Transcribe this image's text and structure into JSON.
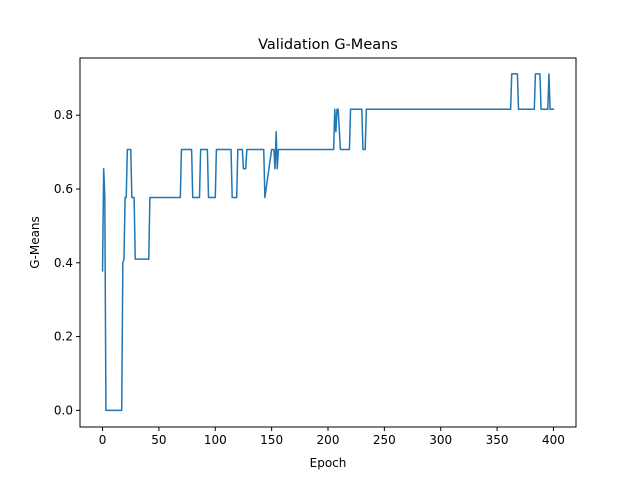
{
  "chart_data": {
    "type": "line",
    "title": "Validation G-Means",
    "xlabel": "Epoch",
    "ylabel": "G-Means",
    "xlim": [
      -20,
      420
    ],
    "ylim": [
      -0.045,
      0.955
    ],
    "xticks": [
      0,
      50,
      100,
      150,
      200,
      250,
      300,
      350,
      400
    ],
    "yticks": [
      0.0,
      0.2,
      0.4,
      0.6,
      0.8
    ],
    "ytick_labels": [
      "0.0",
      "0.2",
      "0.4",
      "0.6",
      "0.8"
    ],
    "grid": false,
    "line_color": "#1f77b4",
    "series": [
      {
        "x": [
          0,
          1,
          2,
          3,
          17,
          18,
          19,
          20,
          21,
          22,
          23,
          25,
          26,
          27,
          28,
          29,
          30,
          41,
          42,
          69,
          70,
          79,
          80,
          86,
          87,
          93,
          94,
          100,
          101,
          114,
          115,
          119,
          120,
          124,
          125,
          127,
          128,
          143,
          144,
          150,
          151,
          152,
          153,
          154,
          155,
          156,
          157,
          205,
          206,
          207,
          208,
          209,
          211,
          212,
          213,
          219,
          220,
          230,
          231,
          233,
          234,
          362,
          363,
          368,
          369,
          383,
          384,
          388,
          389,
          395,
          396,
          397,
          398,
          400
        ],
        "y": [
          0.378,
          0.655,
          0.58,
          0.0,
          0.0,
          0.4,
          0.41,
          0.577,
          0.577,
          0.707,
          0.707,
          0.707,
          0.577,
          0.577,
          0.577,
          0.41,
          0.41,
          0.41,
          0.577,
          0.577,
          0.707,
          0.707,
          0.577,
          0.577,
          0.707,
          0.707,
          0.577,
          0.577,
          0.707,
          0.707,
          0.577,
          0.577,
          0.707,
          0.707,
          0.655,
          0.655,
          0.707,
          0.707,
          0.577,
          0.707,
          0.707,
          0.707,
          0.655,
          0.755,
          0.655,
          0.707,
          0.707,
          0.707,
          0.816,
          0.755,
          0.816,
          0.816,
          0.707,
          0.707,
          0.707,
          0.707,
          0.816,
          0.816,
          0.707,
          0.707,
          0.816,
          0.816,
          0.912,
          0.912,
          0.816,
          0.816,
          0.912,
          0.912,
          0.816,
          0.816,
          0.912,
          0.816,
          0.816,
          0.816
        ]
      }
    ]
  }
}
